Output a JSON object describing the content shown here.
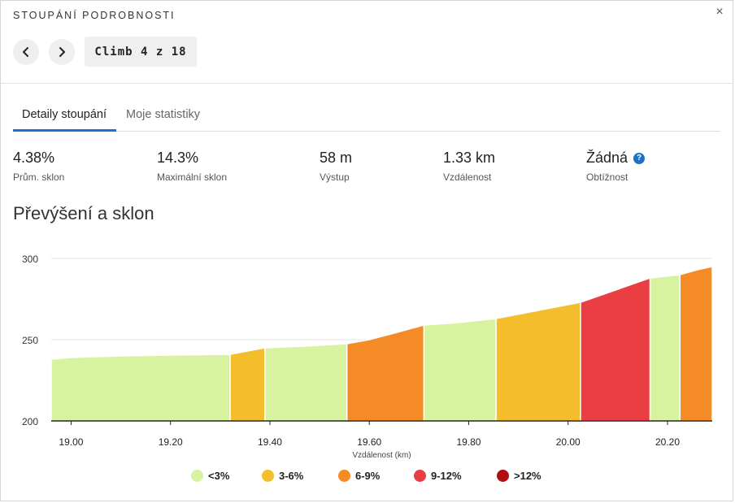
{
  "header": {
    "title": "STOUPÁNÍ PODROBNOSTI",
    "close_label": "×",
    "close_icon": "close-icon"
  },
  "nav": {
    "prev_icon": "chevron-left-icon",
    "next_icon": "chevron-right-icon",
    "climb_label": "Climb 4 z 18"
  },
  "tabs": [
    {
      "label": "Detaily stoupání",
      "active": true
    },
    {
      "label": "Moje statistiky",
      "active": false
    }
  ],
  "stats": [
    {
      "value": "4.38%",
      "label": "Prům. sklon"
    },
    {
      "value": "14.3%",
      "label": "Maximální sklon"
    },
    {
      "value": "58 m",
      "label": "Výstup"
    },
    {
      "value": "1.33 km",
      "label": "Vzdálenost"
    },
    {
      "value": "Žádná",
      "label": "Obtížnost",
      "help_icon": "question-circle-icon",
      "help_glyph": "?"
    }
  ],
  "section_title": "Převýšení a sklon",
  "chart_data": {
    "type": "area",
    "xlabel": "Vzdálenost (km)",
    "ylabel": "",
    "xlim": [
      18.96,
      20.29
    ],
    "ylim": [
      200,
      300
    ],
    "xticks": [
      19.0,
      19.2,
      19.4,
      19.6,
      19.8,
      20.0,
      20.2
    ],
    "xtick_labels": [
      "19.00",
      "19.20",
      "19.40",
      "19.60",
      "19.80",
      "20.00",
      "20.20"
    ],
    "yticks": [
      200,
      250,
      300
    ],
    "ytick_labels": [
      "200",
      "250",
      "300"
    ],
    "grid": "horizontal",
    "gradient_colors": {
      "lt3": "#d8f3a0",
      "3to6": "#f3bd2b",
      "6to9": "#f48b27",
      "9to12": "#ea3e42",
      "gt12": "#b20e10"
    },
    "segments": [
      {
        "category": "lt3",
        "points": [
          [
            18.96,
            238
          ],
          [
            19.0,
            239
          ],
          [
            19.1,
            240
          ],
          [
            19.2,
            240.5
          ],
          [
            19.32,
            241
          ]
        ]
      },
      {
        "category": "3to6",
        "points": [
          [
            19.32,
            241
          ],
          [
            19.39,
            245
          ]
        ]
      },
      {
        "category": "lt3",
        "points": [
          [
            19.39,
            245
          ],
          [
            19.47,
            246
          ],
          [
            19.555,
            247.5
          ]
        ]
      },
      {
        "category": "6to9",
        "points": [
          [
            19.555,
            247.5
          ],
          [
            19.6,
            250
          ],
          [
            19.65,
            254
          ],
          [
            19.71,
            259
          ]
        ]
      },
      {
        "category": "lt3",
        "points": [
          [
            19.71,
            259
          ],
          [
            19.78,
            260.5
          ],
          [
            19.855,
            263
          ]
        ]
      },
      {
        "category": "3to6",
        "points": [
          [
            19.855,
            263
          ],
          [
            19.94,
            268
          ],
          [
            20.025,
            273
          ]
        ]
      },
      {
        "category": "9to12",
        "points": [
          [
            20.025,
            273
          ],
          [
            20.1,
            281
          ],
          [
            20.165,
            288
          ]
        ]
      },
      {
        "category": "lt3",
        "points": [
          [
            20.165,
            288
          ],
          [
            20.225,
            290
          ]
        ]
      },
      {
        "category": "6to9",
        "points": [
          [
            20.225,
            290
          ],
          [
            20.26,
            293
          ],
          [
            20.29,
            295
          ]
        ]
      }
    ]
  },
  "legend": [
    {
      "key": "lt3",
      "label": "<3%"
    },
    {
      "key": "3to6",
      "label": "3-6%"
    },
    {
      "key": "6to9",
      "label": "6-9%"
    },
    {
      "key": "9to12",
      "label": "9-12%"
    },
    {
      "key": "gt12",
      "label": ">12%"
    }
  ]
}
